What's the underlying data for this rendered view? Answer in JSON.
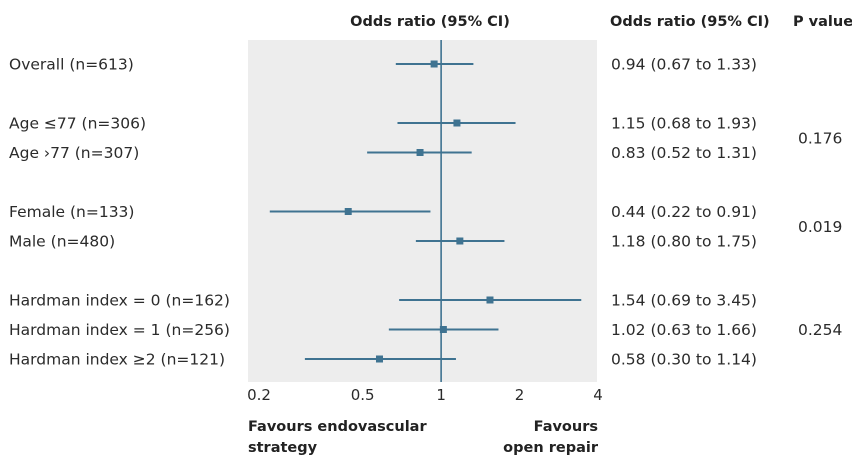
{
  "chart_data": {
    "type": "forest",
    "header_plot": "Odds ratio (95% CI)",
    "header_or": "Odds ratio (95% CI)",
    "header_p": "P value",
    "x_scale": "log",
    "xlim": [
      0.2,
      4
    ],
    "reference_line": 1,
    "ticks": [
      {
        "value": 0.2,
        "label": "0.2"
      },
      {
        "value": 0.5,
        "label": "0.5"
      },
      {
        "value": 1,
        "label": "1"
      },
      {
        "value": 2,
        "label": "2"
      },
      {
        "value": 4,
        "label": "4"
      }
    ],
    "favours_left": [
      "Favours endovascular",
      "strategy"
    ],
    "favours_right": [
      "Favours",
      "open repair"
    ],
    "colors": {
      "marker": "#3f7391",
      "panel": "#ededed",
      "refline": "#3f7391"
    },
    "rows": [
      {
        "label": "Overall (n=613)",
        "or": 0.94,
        "lo": 0.67,
        "hi": 1.33,
        "ci_text": "0.94 (0.67 to 1.33)",
        "group": 0
      },
      {
        "label": "Age ≤77 (n=306)",
        "or": 1.15,
        "lo": 0.68,
        "hi": 1.93,
        "ci_text": "1.15 (0.68 to 1.93)",
        "group": 1
      },
      {
        "label": "Age ›77 (n=307)",
        "or": 0.83,
        "lo": 0.52,
        "hi": 1.31,
        "ci_text": "0.83 (0.52 to 1.31)",
        "group": 1
      },
      {
        "label": "Female (n=133)",
        "or": 0.44,
        "lo": 0.22,
        "hi": 0.91,
        "ci_text": "0.44 (0.22 to 0.91)",
        "group": 2
      },
      {
        "label": "Male (n=480)",
        "or": 1.18,
        "lo": 0.8,
        "hi": 1.75,
        "ci_text": "1.18 (0.80 to 1.75)",
        "group": 2
      },
      {
        "label": "Hardman index = 0 (n=162)",
        "or": 1.54,
        "lo": 0.69,
        "hi": 3.45,
        "ci_text": "1.54 (0.69 to 3.45)",
        "group": 3
      },
      {
        "label": "Hardman index = 1 (n=256)",
        "or": 1.02,
        "lo": 0.63,
        "hi": 1.66,
        "ci_text": "1.02 (0.63 to 1.66)",
        "group": 3
      },
      {
        "label": "Hardman index ≥2 (n=121)",
        "or": 0.58,
        "lo": 0.3,
        "hi": 1.14,
        "ci_text": "0.58 (0.30 to 1.14)",
        "group": 3
      }
    ],
    "p_values": [
      {
        "group": 1,
        "text": "0.176"
      },
      {
        "group": 2,
        "text": "0.019"
      },
      {
        "group": 3,
        "text": "0.254"
      }
    ]
  }
}
